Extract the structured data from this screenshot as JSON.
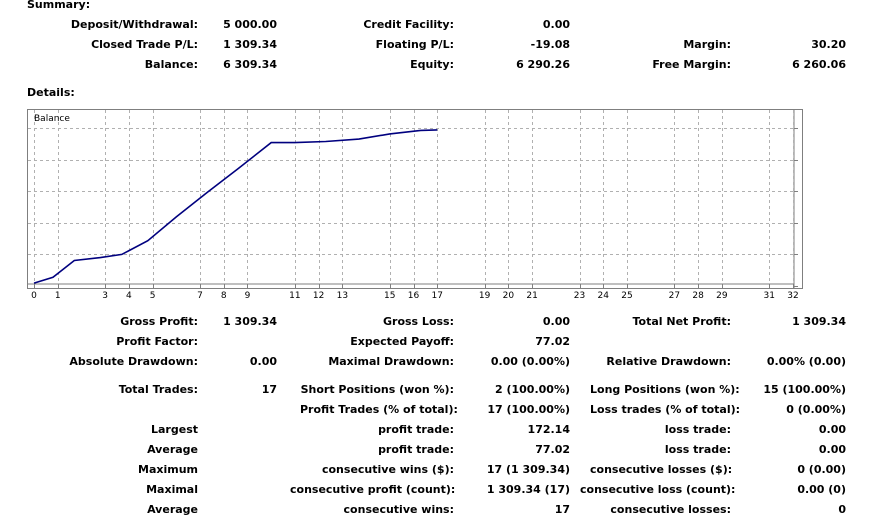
{
  "summary": {
    "title": "Summary:",
    "deposit_label": "Deposit/Withdrawal:",
    "deposit_value": "5 000.00",
    "credit_label": "Credit Facility:",
    "credit_value": "0.00",
    "closed_pl_label": "Closed Trade P/L:",
    "closed_pl_value": "1 309.34",
    "floating_pl_label": "Floating P/L:",
    "floating_pl_value": "-19.08",
    "margin_label": "Margin:",
    "margin_value": "30.20",
    "balance_label": "Balance:",
    "balance_value": "6 309.34",
    "equity_label": "Equity:",
    "equity_value": "6 290.26",
    "free_margin_label": "Free Margin:",
    "free_margin_value": "6 260.06"
  },
  "details_title": "Details:",
  "chart_data": {
    "type": "line",
    "title": "Balance",
    "x_ticks": [
      0,
      1,
      3,
      4,
      5,
      7,
      8,
      9,
      11,
      12,
      13,
      15,
      16,
      17,
      19,
      20,
      21,
      23,
      24,
      25,
      27,
      28,
      29,
      31,
      32
    ],
    "y_ticks": [
      6296,
      6023,
      5751,
      5479,
      5207,
      4935
    ],
    "xlim": [
      0,
      32
    ],
    "ylim": [
      4935,
      6296
    ],
    "grid": true,
    "line_color": "#00007f",
    "series": [
      {
        "x": [
          0,
          0.8,
          1.7,
          2.8,
          3.7,
          4.8,
          6.0,
          7.3,
          8.6,
          10.0,
          11.0,
          12.3,
          13.7,
          15.0,
          16.3,
          17.0
        ],
        "values": [
          4960,
          5010,
          5155,
          5180,
          5207,
          5325,
          5530,
          5740,
          5945,
          6170,
          6170,
          6180,
          6200,
          6245,
          6275,
          6280
        ]
      }
    ]
  },
  "stats": {
    "gross_profit_label": "Gross Profit:",
    "gross_profit_value": "1 309.34",
    "gross_loss_label": "Gross Loss:",
    "gross_loss_value": "0.00",
    "total_net_profit_label": "Total Net Profit:",
    "total_net_profit_value": "1 309.34",
    "profit_factor_label": "Profit Factor:",
    "expected_payoff_label": "Expected Payoff:",
    "expected_payoff_value": "77.02",
    "absolute_drawdown_label": "Absolute Drawdown:",
    "absolute_drawdown_value": "0.00",
    "maximal_drawdown_label": "Maximal Drawdown:",
    "maximal_drawdown_value": "0.00 (0.00%)",
    "relative_drawdown_label": "Relative Drawdown:",
    "relative_drawdown_value": "0.00% (0.00)",
    "total_trades_label": "Total Trades:",
    "total_trades_value": "17",
    "short_positions_label": "Short Positions (won %):",
    "short_positions_value": "2 (100.00%)",
    "long_positions_label": "Long Positions (won %):",
    "long_positions_value": "15 (100.00%)",
    "profit_trades_label": "Profit Trades (% of total):",
    "profit_trades_value": "17 (100.00%)",
    "loss_trades_label": "Loss trades (% of total):",
    "loss_trades_value": "0 (0.00%)",
    "largest_label": "Largest",
    "largest_profit_label": "profit trade:",
    "largest_profit_value": "172.14",
    "largest_loss_label": "loss trade:",
    "largest_loss_value": "0.00",
    "average_label": "Average",
    "average_profit_label": "profit trade:",
    "average_profit_value": "77.02",
    "average_loss_label": "loss trade:",
    "average_loss_value": "0.00",
    "maximum_label": "Maximum",
    "max_cons_wins_label": "consecutive wins ($):",
    "max_cons_wins_value": "17 (1 309.34)",
    "max_cons_losses_label": "consecutive losses ($):",
    "max_cons_losses_value": "0 (0.00)",
    "maximal_label": "Maximal",
    "maximal_cons_profit_label": "consecutive profit (count):",
    "maximal_cons_profit_value": "1 309.34 (17)",
    "maximal_cons_loss_label": "consecutive loss (count):",
    "maximal_cons_loss_value": "0.00 (0)",
    "average2_label": "Average",
    "avg_cons_wins_label": "consecutive wins:",
    "avg_cons_wins_value": "17",
    "avg_cons_losses_label": "consecutive losses:",
    "avg_cons_losses_value": "0"
  }
}
